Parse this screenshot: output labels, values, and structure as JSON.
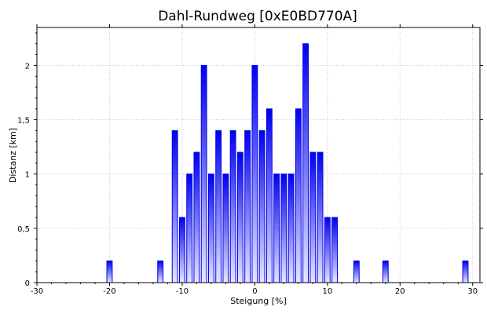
{
  "chart_data": {
    "type": "bar",
    "title": "Dahl-Rundweg [0xE0BD770A]",
    "xlabel": "Steigung [%]",
    "ylabel": "Distanz [km]",
    "xlim": [
      -30,
      31
    ],
    "ylim": [
      0,
      2.35
    ],
    "x_ticks": [
      {
        "value": -30,
        "label": "-30"
      },
      {
        "value": -20,
        "label": "-20"
      },
      {
        "value": -10,
        "label": "-10"
      },
      {
        "value": 0,
        "label": "0"
      },
      {
        "value": 10,
        "label": "10"
      },
      {
        "value": 20,
        "label": "20"
      },
      {
        "value": 30,
        "label": "30"
      }
    ],
    "y_ticks": [
      {
        "value": 0,
        "label": "0"
      },
      {
        "value": 0.5,
        "label": "0,5"
      },
      {
        "value": 1,
        "label": "1"
      },
      {
        "value": 1.5,
        "label": "1,5"
      },
      {
        "value": 2,
        "label": "2"
      }
    ],
    "grid": true,
    "bar_color": "#0000ee",
    "x": [
      -20,
      -13,
      -11,
      -10,
      -9,
      -8,
      -7,
      -6,
      -5,
      -4,
      -3,
      -2,
      -1,
      0,
      1,
      2,
      3,
      4,
      5,
      6,
      7,
      8,
      9,
      10,
      11,
      14,
      18,
      29
    ],
    "values": [
      0.2,
      0.2,
      1.4,
      0.6,
      1.0,
      1.2,
      2.0,
      1.0,
      1.4,
      1.0,
      1.4,
      1.2,
      1.4,
      2.0,
      1.4,
      1.6,
      1.0,
      1.0,
      1.0,
      1.6,
      2.2,
      1.2,
      1.2,
      0.6,
      0.6,
      0.2,
      0.2,
      0.2
    ]
  }
}
